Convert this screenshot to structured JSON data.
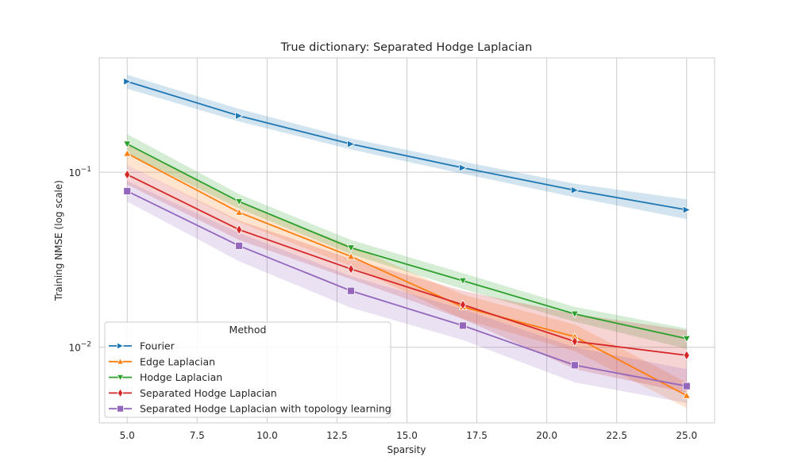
{
  "chart_data": {
    "type": "line",
    "title": "True dictionary: Separated Hodge Laplacian",
    "xlabel": "Sparsity",
    "ylabel": "Training NMSE (log scale)",
    "x": [
      5,
      9,
      13,
      17,
      21,
      25
    ],
    "xlim": [
      4,
      26
    ],
    "xticks": [
      5.0,
      7.5,
      10.0,
      12.5,
      15.0,
      17.5,
      20.0,
      22.5,
      25.0
    ],
    "xtick_labels": [
      "5.0",
      "7.5",
      "10.0",
      "12.5",
      "15.0",
      "17.5",
      "20.0",
      "22.5",
      "25.0"
    ],
    "yscale": "log",
    "ylim": [
      0.0037,
      0.45
    ],
    "yticks": [
      0.1,
      0.01
    ],
    "ytick_labels": [
      {
        "base": "10",
        "exp": "−1"
      },
      {
        "base": "10",
        "exp": "−2"
      }
    ],
    "grid": true,
    "legend": {
      "title": "Method",
      "placement": "lower-left"
    },
    "series": [
      {
        "name": "Fourier",
        "color": "#1f77b4",
        "marker": "triangle-right",
        "values": [
          0.33,
          0.21,
          0.145,
          0.106,
          0.079,
          0.061
        ],
        "lower": [
          0.3,
          0.195,
          0.135,
          0.098,
          0.072,
          0.054
        ],
        "upper": [
          0.36,
          0.23,
          0.156,
          0.115,
          0.086,
          0.07
        ]
      },
      {
        "name": "Edge Laplacian",
        "color": "#ff7f0e",
        "marker": "triangle-up",
        "values": [
          0.128,
          0.059,
          0.033,
          0.017,
          0.0115,
          0.0053
        ],
        "lower": [
          0.11,
          0.052,
          0.029,
          0.0145,
          0.0095,
          0.0045
        ],
        "upper": [
          0.145,
          0.067,
          0.038,
          0.02,
          0.0135,
          0.0063
        ]
      },
      {
        "name": "Hodge Laplacian",
        "color": "#2ca02c",
        "marker": "triangle-down",
        "values": [
          0.145,
          0.068,
          0.037,
          0.024,
          0.0155,
          0.0112
        ],
        "lower": [
          0.128,
          0.062,
          0.034,
          0.0215,
          0.014,
          0.0098
        ],
        "upper": [
          0.165,
          0.075,
          0.041,
          0.0265,
          0.017,
          0.0128
        ]
      },
      {
        "name": "Separated Hodge Laplacian",
        "color": "#d62728",
        "marker": "diamond",
        "values": [
          0.097,
          0.047,
          0.028,
          0.0175,
          0.0108,
          0.009
        ],
        "lower": [
          0.085,
          0.041,
          0.0245,
          0.0145,
          0.0075,
          0.0055
        ],
        "upper": [
          0.11,
          0.053,
          0.032,
          0.021,
          0.0155,
          0.0125
        ]
      },
      {
        "name": "Separated Hodge Laplacian with topology learning",
        "color": "#9467bd",
        "marker": "square",
        "values": [
          0.078,
          0.038,
          0.021,
          0.0133,
          0.0079,
          0.006
        ],
        "lower": [
          0.068,
          0.031,
          0.0168,
          0.011,
          0.0063,
          0.0048
        ],
        "upper": [
          0.089,
          0.045,
          0.0255,
          0.0165,
          0.01,
          0.0075
        ]
      }
    ]
  }
}
